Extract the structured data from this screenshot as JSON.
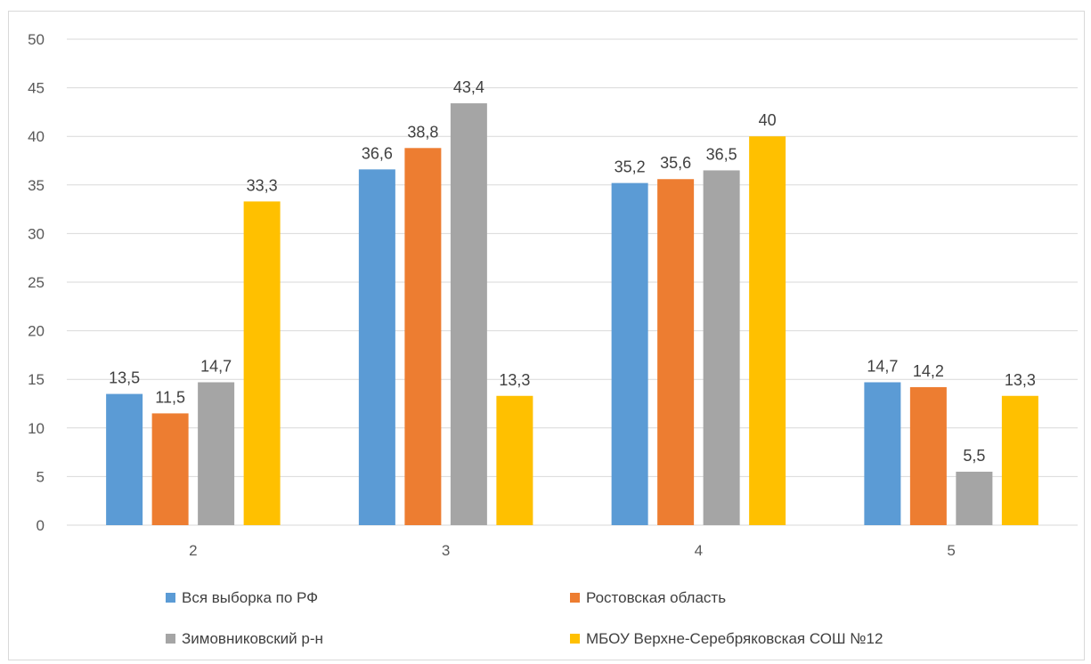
{
  "chart_data": {
    "type": "bar",
    "categories": [
      "2",
      "3",
      "4",
      "5"
    ],
    "series": [
      {
        "name": "Вся выборка по РФ",
        "values": [
          13.5,
          36.6,
          35.2,
          14.7
        ],
        "labels": [
          "13,5",
          "36,6",
          "35,2",
          "14,7"
        ],
        "color": "#5b9bd5"
      },
      {
        "name": "Ростовская область",
        "values": [
          11.5,
          38.8,
          35.6,
          14.2
        ],
        "labels": [
          "11,5",
          "38,8",
          "35,6",
          "14,2"
        ],
        "color": "#ed7d31"
      },
      {
        "name": "Зимовниковский р-н",
        "values": [
          14.7,
          43.4,
          36.5,
          5.5
        ],
        "labels": [
          "14,7",
          "43,4",
          "36,5",
          "5,5"
        ],
        "color": "#a5a5a5"
      },
      {
        "name": "МБОУ Верхне-Серебряковская СОШ №12",
        "values": [
          33.3,
          13.3,
          40,
          13.3
        ],
        "labels": [
          "33,3",
          "13,3",
          "40",
          "13,3"
        ],
        "color": "#ffc000"
      }
    ],
    "ylim": [
      0,
      50
    ],
    "yticks": [
      "0",
      "5",
      "10",
      "15",
      "20",
      "25",
      "30",
      "35",
      "40",
      "45",
      "50"
    ],
    "grid": true,
    "legend": "bottom",
    "gridline_color": "#d9d9d9"
  }
}
